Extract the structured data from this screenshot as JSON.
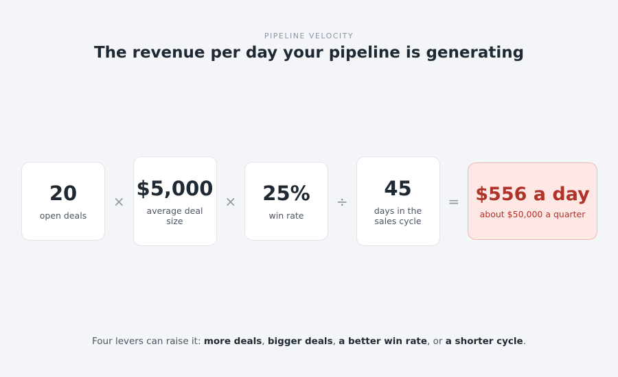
{
  "header": {
    "eyebrow": "PIPELINE VELOCITY",
    "title": "The revenue per day your pipeline is generating"
  },
  "factors": [
    {
      "value": "20",
      "label": "open deals"
    },
    {
      "value": "$5,000",
      "label": "average deal size"
    },
    {
      "value": "25%",
      "label": "win rate"
    },
    {
      "value": "45",
      "label": "days in the sales cycle"
    }
  ],
  "operators": [
    "×",
    "×",
    "÷",
    "="
  ],
  "result": {
    "value": "$556 a day",
    "label": "about $50,000 a quarter"
  },
  "footer": [
    {
      "text": "Four levers can raise it: ",
      "bold": false
    },
    {
      "text": "more deals",
      "bold": true
    },
    {
      "text": ", ",
      "bold": false
    },
    {
      "text": "bigger deals",
      "bold": true
    },
    {
      "text": ", ",
      "bold": false
    },
    {
      "text": "a better win rate",
      "bold": true
    },
    {
      "text": ", or ",
      "bold": false
    },
    {
      "text": "a shorter cycle",
      "bold": true
    },
    {
      "text": ".",
      "bold": false
    }
  ]
}
